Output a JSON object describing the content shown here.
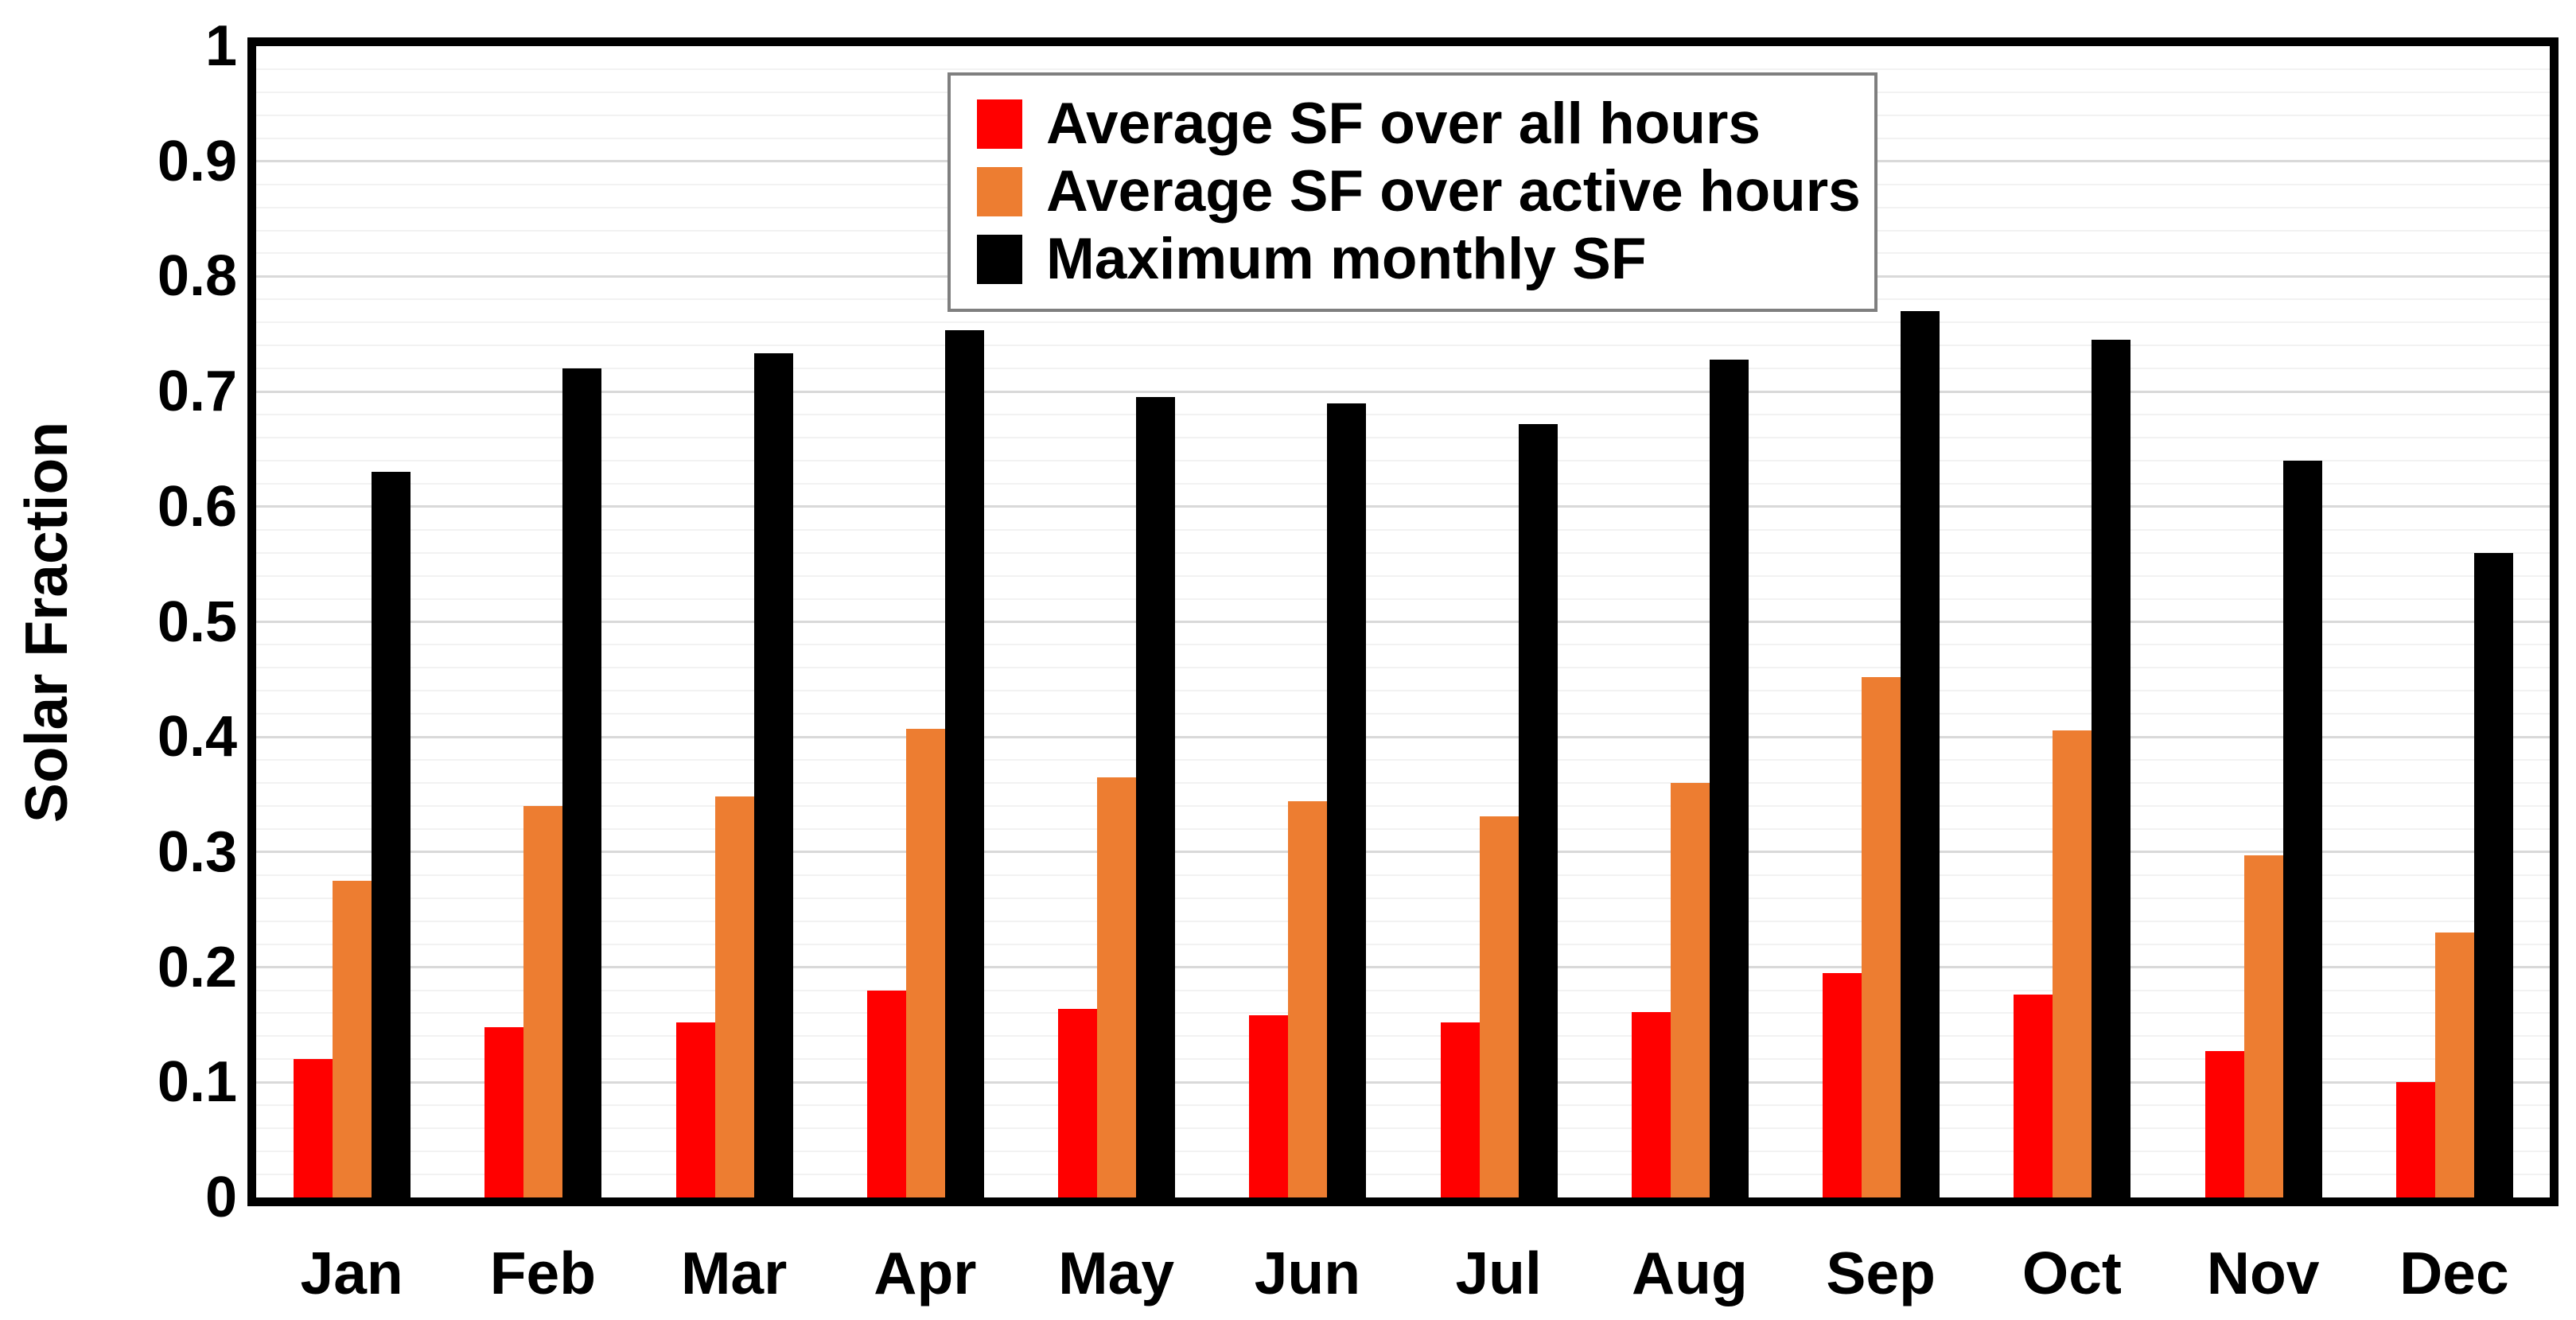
{
  "chart_data": {
    "type": "bar",
    "title": "",
    "xlabel": "",
    "ylabel": "Solar Fraction",
    "ylim": [
      0,
      1
    ],
    "y_tick_step": 0.1,
    "y_minor_grid_step": 0.02,
    "grid": true,
    "legend_position": "top-center-inside-plot",
    "categories": [
      "Jan",
      "Feb",
      "Mar",
      "Apr",
      "May",
      "Jun",
      "Jul",
      "Aug",
      "Sep",
      "Oct",
      "Nov",
      "Dec"
    ],
    "y_tick_labels": [
      "0",
      "0.1",
      "0.2",
      "0.3",
      "0.4",
      "0.5",
      "0.6",
      "0.7",
      "0.8",
      "0.9",
      "1"
    ],
    "series": [
      {
        "name": "Average SF over all hours",
        "color": "#FF0000",
        "values": [
          0.12,
          0.148,
          0.152,
          0.18,
          0.164,
          0.158,
          0.152,
          0.161,
          0.195,
          0.176,
          0.127,
          0.1
        ]
      },
      {
        "name": "Average SF over active hours",
        "color": "#ED7D31",
        "values": [
          0.275,
          0.34,
          0.348,
          0.407,
          0.365,
          0.344,
          0.331,
          0.36,
          0.452,
          0.406,
          0.297,
          0.23
        ]
      },
      {
        "name": "Maximum monthly SF",
        "color": "#000000",
        "values": [
          0.63,
          0.72,
          0.733,
          0.753,
          0.695,
          0.69,
          0.672,
          0.728,
          0.77,
          0.745,
          0.64,
          0.56
        ]
      }
    ],
    "style": {
      "background": "#FFFFFF",
      "axis_color": "#000000",
      "major_grid_color": "#D9D9D9",
      "minor_grid_color": "#F2F2F2",
      "legend_border_color": "#7F7F7F"
    }
  }
}
